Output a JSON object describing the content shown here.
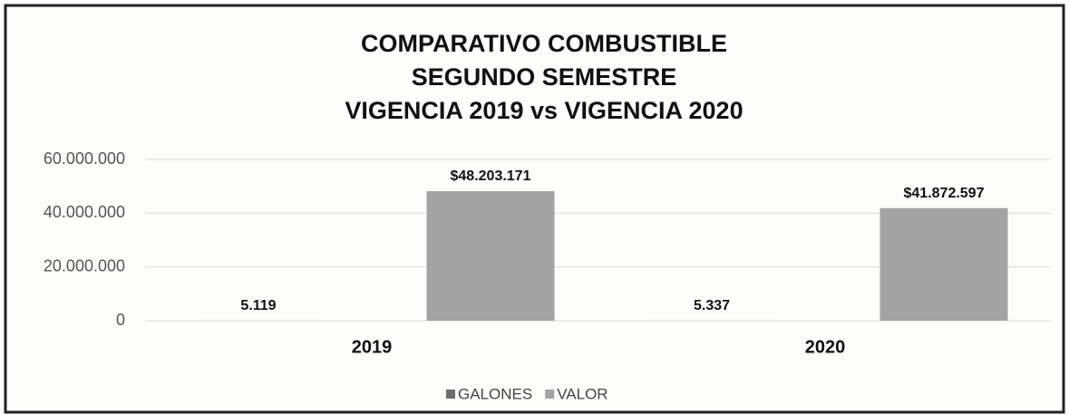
{
  "chart_data": {
    "type": "bar",
    "title": [
      "COMPARATIVO COMBUSTIBLE",
      "SEGUNDO SEMESTRE",
      "VIGENCIA 2019 vs VIGENCIA 2020"
    ],
    "categories": [
      "2019",
      "2020"
    ],
    "series": [
      {
        "name": "GALONES",
        "color": "#6e6e6e",
        "values": [
          5119,
          5337
        ],
        "value_labels": [
          "5.119",
          "5.337"
        ]
      },
      {
        "name": "VALOR",
        "color": "#a3a3a3",
        "values": [
          48203171,
          41872597
        ],
        "value_labels": [
          "$48.203.171",
          "$41.872.597"
        ]
      }
    ],
    "ylim": [
      0,
      60000000
    ],
    "yticks": [
      0,
      {
        "value": 20000000,
        "label": "20.000.000"
      },
      {
        "value": 40000000,
        "label": "40.000.000"
      },
      {
        "value": 60000000,
        "label": "60.000.000"
      }
    ],
    "grid": true,
    "legend": "bottom"
  }
}
